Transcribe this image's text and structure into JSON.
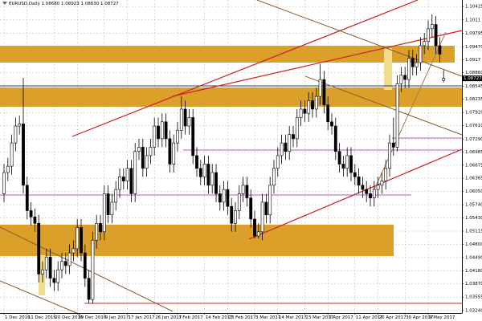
{
  "chart_data": {
    "type": "candlestick",
    "title": "EURUSD,Daily  1.08680 1.08923 1.08630 1.08727",
    "current_price": {
      "value": 1.08727,
      "label": "1.08727"
    },
    "up_color": "#ffffff",
    "down_color": "#000000",
    "grid": true,
    "ylim": [
      1.0318,
      1.1058
    ],
    "yticks": [
      1.10425,
      1.1011,
      1.09795,
      {
        "value": 1.0947,
        "label": "1.09470"
      },
      1.0917,
      {
        "value": 1.0886,
        "label": "1.08860"
      },
      1.08545,
      1.08235,
      {
        "value": 1.0792,
        "label": "1.07920"
      },
      {
        "value": 1.0761,
        "label": "1.07610"
      },
      {
        "value": 1.0729,
        "label": "1.07290"
      },
      1.06985,
      1.06675,
      1.06365,
      {
        "value": 1.0605,
        "label": "1.06050"
      },
      {
        "value": 1.0574,
        "label": "1.05740"
      },
      {
        "value": 1.0543,
        "label": "1.05430"
      },
      1.05115,
      {
        "value": 1.048,
        "label": "1.04800"
      },
      {
        "value": 1.0449,
        "label": "1.04490"
      },
      {
        "value": 1.0418,
        "label": "1.04180"
      },
      {
        "value": 1.0387,
        "label": "1.03870"
      },
      1.03555,
      {
        "value": 1.0324,
        "label": "1.03240"
      }
    ],
    "categories": [
      "1 Dec 2016",
      null,
      null,
      null,
      null,
      null,
      "11 Dec 2016",
      null,
      null,
      null,
      null,
      null,
      null,
      "20 Dec 2016",
      null,
      null,
      null,
      null,
      null,
      "29 Dec 2016",
      null,
      null,
      null,
      null,
      null,
      null,
      "9 Jan 2017",
      null,
      null,
      null,
      null,
      null,
      "17 Jan 2017",
      null,
      null,
      null,
      null,
      null,
      null,
      "26 Jan 2017",
      null,
      null,
      null,
      null,
      null,
      "3 Feb 2017",
      null,
      null,
      null,
      null,
      null,
      null,
      "14 Feb 2017",
      null,
      null,
      null,
      null,
      null,
      "23 Feb 2017",
      null,
      null,
      null,
      null,
      null,
      null,
      "3 Mar 2017",
      null,
      null,
      null,
      null,
      null,
      "14 Mar 2017",
      null,
      null,
      null,
      null,
      null,
      null,
      "23 Mar 2017",
      null,
      null,
      null,
      null,
      null,
      "3 Apr 2017",
      null,
      null,
      null,
      null,
      null,
      null,
      "11 Apr 2017",
      null,
      null,
      null,
      null,
      null,
      "20 Apr 2017",
      null,
      null,
      null,
      null,
      null,
      null,
      "30 Apr 2017",
      null,
      null,
      null,
      null,
      null,
      "9 May 2017",
      null,
      null,
      null,
      null
    ],
    "open": [
      1.06,
      1.065,
      1.0665,
      1.072,
      1.076,
      1.0765,
      1.062,
      1.056,
      1.0545,
      1.053,
      1.041,
      1.042,
      1.045,
      1.04,
      1.039,
      1.042,
      1.044,
      1.043,
      1.046,
      1.047,
      1.052,
      1.046,
      1.04,
      1.035,
      1.049,
      1.053,
      1.051,
      1.06,
      1.055,
      1.058,
      1.061,
      1.064,
      1.063,
      1.066,
      1.06,
      1.07,
      1.071,
      1.066,
      1.069,
      1.071,
      1.076,
      1.073,
      1.077,
      1.073,
      1.067,
      1.072,
      1.075,
      1.08,
      1.076,
      1.078,
      1.069,
      1.066,
      1.064,
      1.067,
      1.062,
      1.065,
      1.06,
      1.058,
      1.061,
      1.057,
      1.053,
      1.056,
      1.06,
      1.062,
      1.059,
      1.054,
      1.05,
      1.051,
      1.058,
      1.055,
      1.062,
      1.066,
      1.069,
      1.072,
      1.07,
      1.074,
      1.073,
      1.078,
      1.08,
      1.079,
      1.082,
      1.08,
      1.083,
      1.087,
      1.081,
      1.077,
      1.076,
      1.07,
      1.067,
      1.066,
      1.069,
      1.065,
      1.064,
      1.062,
      1.061,
      1.06,
      1.059,
      1.061,
      1.062,
      1.063,
      1.066,
      1.072,
      1.071,
      1.086,
      1.088,
      1.087,
      1.092,
      1.09,
      1.091,
      1.095,
      1.096,
      1.099,
      1.1,
      1.095,
      1.0868
    ],
    "high": [
      1.067,
      1.0685,
      1.074,
      1.078,
      1.0785,
      1.0874,
      1.064,
      1.058,
      1.0565,
      1.055,
      1.044,
      1.047,
      1.047,
      1.042,
      1.044,
      1.046,
      1.046,
      1.048,
      1.049,
      1.054,
      1.054,
      1.048,
      1.042,
      1.051,
      1.055,
      1.055,
      1.062,
      1.062,
      1.06,
      1.063,
      1.066,
      1.066,
      1.068,
      1.068,
      1.072,
      1.073,
      1.073,
      1.071,
      1.073,
      1.078,
      1.078,
      1.079,
      1.079,
      1.075,
      1.074,
      1.077,
      1.083,
      1.082,
      1.08,
      1.08,
      1.071,
      1.068,
      1.069,
      1.069,
      1.067,
      1.067,
      1.062,
      1.063,
      1.063,
      1.059,
      1.058,
      1.062,
      1.064,
      1.064,
      1.061,
      1.056,
      1.053,
      1.06,
      1.06,
      1.064,
      1.068,
      1.071,
      1.074,
      1.074,
      1.076,
      1.076,
      1.08,
      1.082,
      1.082,
      1.084,
      1.084,
      1.085,
      1.0906,
      1.089,
      1.083,
      1.079,
      1.078,
      1.072,
      1.069,
      1.071,
      1.071,
      1.067,
      1.066,
      1.064,
      1.063,
      1.062,
      1.063,
      1.064,
      1.065,
      1.068,
      1.074,
      1.078,
      1.088,
      1.09,
      1.09,
      1.094,
      1.094,
      1.093,
      1.097,
      1.098,
      1.101,
      1.1024,
      1.102,
      1.097,
      1.08923
    ],
    "low": [
      1.058,
      1.063,
      1.0645,
      1.07,
      1.074,
      1.06,
      1.054,
      1.0525,
      1.051,
      1.039,
      1.039,
      1.04,
      1.038,
      1.037,
      1.037,
      1.04,
      1.041,
      1.041,
      1.044,
      1.045,
      1.044,
      1.038,
      1.0341,
      1.034,
      1.047,
      1.049,
      1.049,
      1.053,
      1.053,
      1.056,
      1.059,
      1.061,
      1.061,
      1.058,
      1.058,
      1.068,
      1.064,
      1.064,
      1.067,
      1.069,
      1.071,
      1.071,
      1.071,
      1.065,
      1.065,
      1.07,
      1.073,
      1.074,
      1.074,
      1.067,
      1.064,
      1.062,
      1.062,
      1.06,
      1.06,
      1.058,
      1.056,
      1.056,
      1.055,
      1.051,
      1.051,
      1.054,
      1.058,
      1.057,
      1.052,
      1.0494,
      1.0494,
      1.049,
      1.053,
      1.053,
      1.06,
      1.064,
      1.067,
      1.068,
      1.068,
      1.071,
      1.071,
      1.076,
      1.077,
      1.077,
      1.078,
      1.078,
      1.081,
      1.079,
      1.075,
      1.074,
      1.068,
      1.065,
      1.064,
      1.064,
      1.063,
      1.062,
      1.06,
      1.059,
      1.058,
      1.057,
      1.057,
      1.059,
      1.06,
      1.061,
      1.064,
      1.069,
      1.07,
      1.084,
      1.085,
      1.085,
      1.088,
      1.088,
      1.089,
      1.093,
      1.094,
      1.097,
      1.093,
      1.091,
      1.0863
    ],
    "close": [
      1.065,
      1.0665,
      1.072,
      1.076,
      1.0765,
      1.062,
      1.056,
      1.0545,
      1.053,
      1.041,
      1.042,
      1.045,
      1.04,
      1.039,
      1.042,
      1.044,
      1.043,
      1.046,
      1.047,
      1.052,
      1.046,
      1.04,
      1.035,
      1.049,
      1.053,
      1.051,
      1.06,
      1.055,
      1.058,
      1.061,
      1.064,
      1.063,
      1.066,
      1.06,
      1.07,
      1.071,
      1.066,
      1.069,
      1.071,
      1.076,
      1.073,
      1.077,
      1.073,
      1.067,
      1.072,
      1.075,
      1.08,
      1.076,
      1.078,
      1.069,
      1.066,
      1.064,
      1.067,
      1.062,
      1.065,
      1.06,
      1.058,
      1.061,
      1.057,
      1.053,
      1.056,
      1.06,
      1.062,
      1.059,
      1.054,
      1.05,
      1.051,
      1.058,
      1.055,
      1.062,
      1.066,
      1.069,
      1.072,
      1.07,
      1.074,
      1.073,
      1.078,
      1.08,
      1.079,
      1.082,
      1.08,
      1.083,
      1.087,
      1.081,
      1.077,
      1.076,
      1.07,
      1.067,
      1.066,
      1.069,
      1.065,
      1.064,
      1.062,
      1.061,
      1.06,
      1.059,
      1.061,
      1.062,
      1.063,
      1.066,
      1.072,
      1.071,
      1.086,
      1.088,
      1.087,
      1.092,
      1.09,
      1.091,
      1.095,
      1.096,
      1.099,
      1.1,
      1.095,
      1.093,
      1.08727
    ]
  }
}
